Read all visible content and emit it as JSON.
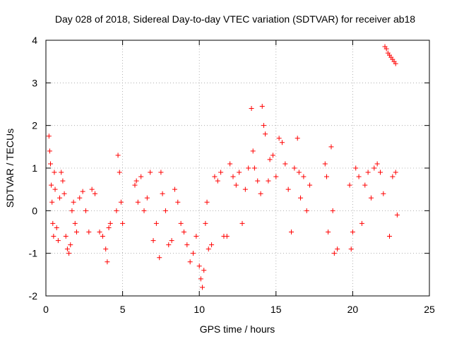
{
  "chart_data": {
    "type": "scatter",
    "title": "Day 028 of 2018, Sidereal Day-to-day VTEC variation (SDTVAR) for receiver ab18",
    "xlabel": "GPS time / hours",
    "ylabel": "SDTVAR / TECUs",
    "xlim": [
      0,
      25
    ],
    "ylim": [
      -2,
      4
    ],
    "xticks": [
      0,
      5,
      10,
      15,
      20,
      25
    ],
    "yticks": [
      -2,
      -1,
      0,
      1,
      2,
      3,
      4
    ],
    "grid": true,
    "marker": "+",
    "color": "#ff0000",
    "series": [
      {
        "name": "SDTVAR",
        "points": [
          [
            0.2,
            1.75
          ],
          [
            0.25,
            1.4
          ],
          [
            0.3,
            1.1
          ],
          [
            0.35,
            0.6
          ],
          [
            0.4,
            0.2
          ],
          [
            0.45,
            -0.3
          ],
          [
            0.5,
            -0.6
          ],
          [
            0.55,
            0.9
          ],
          [
            0.6,
            0.5
          ],
          [
            0.7,
            -0.4
          ],
          [
            0.8,
            -0.7
          ],
          [
            0.9,
            0.3
          ],
          [
            1.0,
            0.9
          ],
          [
            1.1,
            0.7
          ],
          [
            1.2,
            0.4
          ],
          [
            1.3,
            -0.6
          ],
          [
            1.4,
            -0.9
          ],
          [
            1.5,
            -1.0
          ],
          [
            1.6,
            -0.8
          ],
          [
            1.7,
            0.0
          ],
          [
            1.8,
            0.2
          ],
          [
            1.9,
            -0.3
          ],
          [
            2.0,
            -0.5
          ],
          [
            2.2,
            0.3
          ],
          [
            2.4,
            0.45
          ],
          [
            2.6,
            0.0
          ],
          [
            2.8,
            -0.5
          ],
          [
            3.0,
            0.5
          ],
          [
            3.2,
            0.4
          ],
          [
            3.5,
            -0.5
          ],
          [
            3.7,
            -0.6
          ],
          [
            3.9,
            -0.9
          ],
          [
            4.0,
            -1.2
          ],
          [
            4.1,
            -0.4
          ],
          [
            4.2,
            -0.3
          ],
          [
            4.6,
            0.0
          ],
          [
            4.7,
            1.3
          ],
          [
            4.8,
            0.9
          ],
          [
            4.9,
            0.2
          ],
          [
            5.0,
            -0.3
          ],
          [
            5.8,
            0.6
          ],
          [
            5.9,
            0.7
          ],
          [
            6.0,
            0.2
          ],
          [
            6.2,
            0.8
          ],
          [
            6.4,
            0.0
          ],
          [
            6.6,
            0.3
          ],
          [
            6.8,
            0.9
          ],
          [
            7.0,
            -0.7
          ],
          [
            7.2,
            -0.3
          ],
          [
            7.4,
            -1.1
          ],
          [
            7.5,
            0.9
          ],
          [
            7.6,
            0.4
          ],
          [
            7.8,
            0.0
          ],
          [
            8.0,
            -0.8
          ],
          [
            8.2,
            -0.7
          ],
          [
            8.4,
            0.5
          ],
          [
            8.6,
            0.2
          ],
          [
            8.8,
            -0.3
          ],
          [
            9.0,
            -0.5
          ],
          [
            9.2,
            -0.8
          ],
          [
            9.4,
            -1.2
          ],
          [
            9.6,
            -1.0
          ],
          [
            9.8,
            -0.6
          ],
          [
            10.0,
            -1.3
          ],
          [
            10.1,
            -1.6
          ],
          [
            10.2,
            -1.8
          ],
          [
            10.3,
            -1.4
          ],
          [
            10.4,
            -0.3
          ],
          [
            10.5,
            0.2
          ],
          [
            10.6,
            -0.9
          ],
          [
            10.8,
            -0.8
          ],
          [
            11.0,
            0.8
          ],
          [
            11.2,
            0.7
          ],
          [
            11.4,
            0.9
          ],
          [
            11.6,
            -0.6
          ],
          [
            11.8,
            -0.6
          ],
          [
            12.0,
            1.1
          ],
          [
            12.2,
            0.8
          ],
          [
            12.4,
            0.6
          ],
          [
            12.6,
            0.9
          ],
          [
            12.8,
            -0.3
          ],
          [
            13.0,
            0.5
          ],
          [
            13.2,
            1.0
          ],
          [
            13.4,
            2.4
          ],
          [
            13.5,
            1.4
          ],
          [
            13.6,
            1.0
          ],
          [
            13.8,
            0.7
          ],
          [
            14.0,
            0.4
          ],
          [
            14.1,
            2.45
          ],
          [
            14.2,
            2.0
          ],
          [
            14.3,
            1.8
          ],
          [
            14.5,
            0.7
          ],
          [
            14.6,
            1.2
          ],
          [
            14.8,
            1.3
          ],
          [
            15.0,
            0.8
          ],
          [
            15.2,
            1.7
          ],
          [
            15.4,
            1.6
          ],
          [
            15.6,
            1.1
          ],
          [
            15.8,
            0.5
          ],
          [
            16.0,
            -0.5
          ],
          [
            16.2,
            1.0
          ],
          [
            16.4,
            1.7
          ],
          [
            16.5,
            0.9
          ],
          [
            16.6,
            0.3
          ],
          [
            16.8,
            0.8
          ],
          [
            17.0,
            0.0
          ],
          [
            17.2,
            0.6
          ],
          [
            18.2,
            1.1
          ],
          [
            18.3,
            0.8
          ],
          [
            18.4,
            -0.5
          ],
          [
            18.6,
            1.5
          ],
          [
            18.7,
            0.0
          ],
          [
            18.8,
            -1.0
          ],
          [
            19.0,
            -0.9
          ],
          [
            19.8,
            0.6
          ],
          [
            19.9,
            -0.9
          ],
          [
            20.0,
            -0.5
          ],
          [
            20.2,
            1.0
          ],
          [
            20.4,
            0.8
          ],
          [
            20.6,
            -0.3
          ],
          [
            20.8,
            0.6
          ],
          [
            21.0,
            0.9
          ],
          [
            21.2,
            0.3
          ],
          [
            21.4,
            1.0
          ],
          [
            21.6,
            1.1
          ],
          [
            21.8,
            0.9
          ],
          [
            22.0,
            0.4
          ],
          [
            22.1,
            3.85
          ],
          [
            22.2,
            3.8
          ],
          [
            22.3,
            3.7
          ],
          [
            22.4,
            3.65
          ],
          [
            22.5,
            3.6
          ],
          [
            22.6,
            3.55
          ],
          [
            22.7,
            3.5
          ],
          [
            22.8,
            3.45
          ],
          [
            22.4,
            -0.6
          ],
          [
            22.6,
            0.8
          ],
          [
            22.8,
            0.9
          ],
          [
            22.9,
            -0.1
          ]
        ]
      }
    ]
  }
}
